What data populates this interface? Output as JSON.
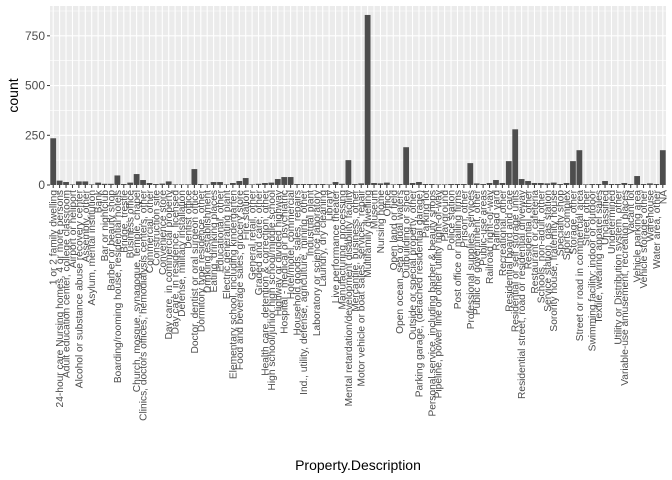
{
  "chart_data": {
    "type": "bar",
    "title": "",
    "xlabel": "Property.Description",
    "ylabel": "count",
    "ylim": [
      0,
      900
    ],
    "yticks": [
      0,
      250,
      500,
      750
    ],
    "grid": true,
    "colors": {
      "panel": "#ebebeb",
      "grid_major": "#ffffff",
      "bar": "#4d4d4d",
      "text": "#4d4d4d"
    },
    "categories": [
      "1 or 2 family dwelling",
      "24-hour care Nursing homes, 4 or more persons",
      "Adult education center, college classroom",
      "Airport or heliport",
      "Alcohol or substance abuse recovery center",
      "Assembly, other",
      "Asylum, mental institution",
      "Bank",
      "Bar or nightclub",
      "Barber or beauty shop",
      "Boarding/rooming house, residential hotels",
      "Bridge, trestle",
      "Business office",
      "Church, mosque, synagogue, temple, chapel",
      "Clinics, doctors offices, hemodialysis centers, other",
      "Commercial, other",
      "Construction site",
      "Convenience store",
      "Day care, in commercial property",
      "Day care, in residence, licensed",
      "Defense, military installation",
      "Dentist office",
      "Doctor, dentist or oral surgeon office",
      "Dormitory type residence, other",
      "Drinking establishment",
      "Eating, drinking places",
      "Educational, other",
      "Electric generating plant",
      "Elementary school, including kindergarten",
      "Food and beverage sales, grocery store",
      "Fire station",
      "General retail, other",
      "Graded and care, other",
      "Health care, detention & correction, other",
      "High school/junior high school/middle school",
      "Highway or divided highway",
      "Hospital - medical or psychiatric",
      "Hotel/motel, commercial",
      "Household goods, sales, repairs",
      "Ind., utility, defense, agriculture, mining, other",
      "Industrial plant",
      "Laboratory or science laboratory",
      "Laundry, dry cleaning",
      "Library",
      "Live performance theater",
      "Manufacturing, processing",
      "Mental retardation/development disability facility",
      "Mercantile, business, other",
      "Motor vehicle or boat sales, services, repair",
      "Multifamily dwelling",
      "Museum",
      "Nursing home",
      "Office",
      "Open land or field",
      "Open ocean, sea or tidal waters",
      "Outbuilding or shed",
      "Outside or special property, other",
      "Parking garage, (detached residential garage)",
      "Parking lot",
      "Personal service, including barber & beauty shops",
      "Pipeline, power line or other utility right-of-way",
      "Playground",
      "Police station",
      "Post office or mailing firms",
      "Prison, other",
      "Professional supplies, services",
      "Public or government, other",
      "Public-use areas",
      "Railroad right-of-way",
      "Railroad yard",
      "Recreational, other",
      "Residential board and care",
      "Residential or self storage units",
      "Residential street, road or residential driveway",
      "Residential, other",
      "Restaurant or cafeteria",
      "Schools, non-adult, other",
      "Service station, gas station",
      "Sorority house, fraternity house",
      "Specialty shop",
      "Sports complex",
      "Storage, other",
      "Street or road in commercial area",
      "Street, other",
      "Swimming facility: indoor or outdoor",
      "Textile, wearing apparel sales",
      "Unclassified",
      "Undetermined",
      "Utility or Distribution system, other",
      "Variable-use amusement, recreation places",
      "Vacant lot",
      "Vehicle parking area",
      "Vehicle storage, other",
      "Warehouse",
      "Water area, other",
      "NA"
    ],
    "values": [
      235,
      22,
      15,
      3,
      18,
      18,
      3,
      12,
      6,
      6,
      48,
      5,
      12,
      55,
      25,
      10,
      5,
      7,
      18,
      3,
      3,
      3,
      80,
      5,
      3,
      15,
      15,
      3,
      10,
      20,
      35,
      3,
      6,
      10,
      12,
      30,
      40,
      40,
      5,
      5,
      5,
      5,
      5,
      3,
      15,
      6,
      125,
      5,
      8,
      855,
      10,
      8,
      12,
      3,
      5,
      190,
      10,
      15,
      5,
      5,
      3,
      3,
      5,
      5,
      5,
      110,
      8,
      5,
      10,
      25,
      10,
      120,
      280,
      30,
      20,
      10,
      10,
      8,
      12,
      5,
      10,
      120,
      175,
      3,
      5,
      5,
      20,
      5,
      5,
      10,
      5,
      45,
      5,
      8,
      5,
      175
    ]
  }
}
